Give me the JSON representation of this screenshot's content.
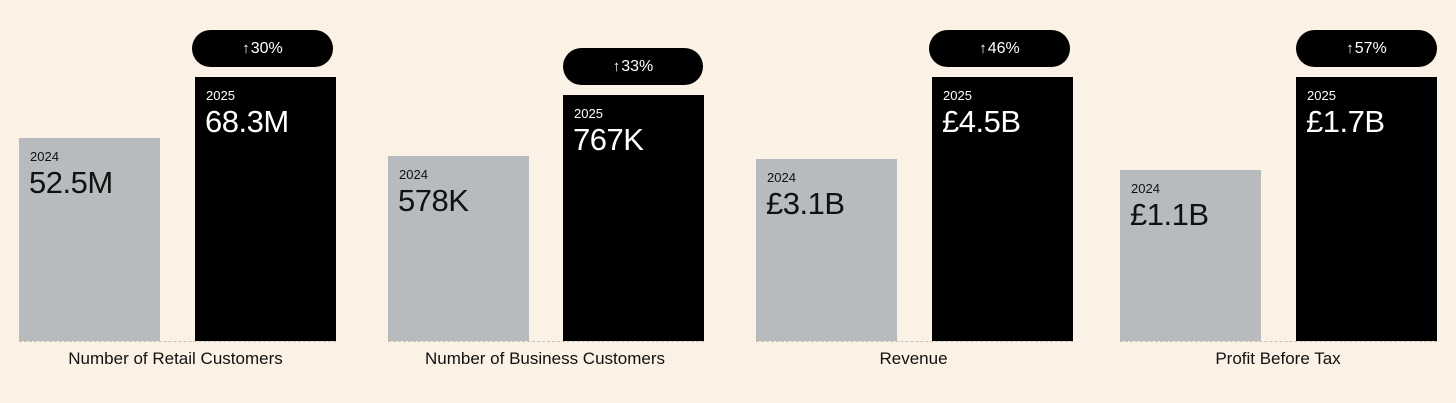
{
  "chart_data": [
    {
      "type": "bar",
      "xlabel": "Number of Retail Customers",
      "categories": [
        "2024",
        "2025"
      ],
      "values": [
        52.5,
        68.3
      ],
      "value_labels": [
        "52.5M",
        "68.3M"
      ],
      "change_label": "30%",
      "ylim": [
        0,
        68.3
      ]
    },
    {
      "type": "bar",
      "xlabel": "Number of Business Customers",
      "categories": [
        "2024",
        "2025"
      ],
      "values": [
        578,
        767
      ],
      "value_labels": [
        "578K",
        "767K"
      ],
      "change_label": "33%",
      "ylim": [
        0,
        823
      ]
    },
    {
      "type": "bar",
      "xlabel": "Revenue",
      "categories": [
        "2024",
        "2025"
      ],
      "values": [
        3.1,
        4.5
      ],
      "value_labels": [
        "£3.1B",
        "£4.5B"
      ],
      "change_label": "46%",
      "ylim": [
        0,
        4.5
      ]
    },
    {
      "type": "bar",
      "xlabel": "Profit Before Tax",
      "categories": [
        "2024",
        "2025"
      ],
      "values": [
        1.1,
        1.7
      ],
      "value_labels": [
        "£1.1B",
        "£1.7B"
      ],
      "change_label": "57%",
      "ylim": [
        0,
        1.7
      ]
    }
  ],
  "colors": {
    "background": "#fbf1e4",
    "previous_bar": "#b7bbbd",
    "current_bar": "#000000",
    "badge": "#000000"
  },
  "icons": {
    "change": "arrow-up-icon"
  }
}
